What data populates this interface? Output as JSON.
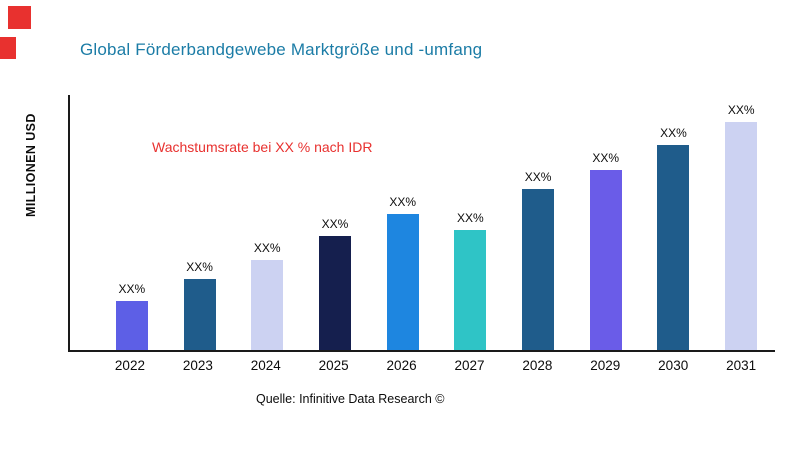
{
  "page": {
    "source": "Quelle: Infinitive Data Research ©"
  },
  "colors": {
    "title": "#1b7ca6",
    "annotation": "#e8312f",
    "logo": "#e8312f",
    "axis": "#1a1a1a",
    "background": "#ffffff"
  },
  "chart_data": {
    "type": "bar",
    "title": "Global Förderbandgewebe Marktgröße und -umfang",
    "ylabel": "MILLIONEN USD",
    "xlabel": "",
    "annotation": "Wachstumsrate bei XX % nach IDR",
    "categories": [
      "2022",
      "2023",
      "2024",
      "2025",
      "2026",
      "2027",
      "2028",
      "2029",
      "2030",
      "2031"
    ],
    "value_labels": [
      "XX%",
      "XX%",
      "XX%",
      "XX%",
      "XX%",
      "XX%",
      "XX%",
      "XX%",
      "XX%",
      "XX%"
    ],
    "values": [
      50,
      72,
      92,
      116,
      139,
      122,
      164,
      184,
      209,
      232
    ],
    "ylim": [
      0,
      260
    ],
    "bar_colors": [
      "#5d5fe6",
      "#1f5c8b",
      "#ccd2f2",
      "#151f4e",
      "#1e86e0",
      "#2fc4c6",
      "#1f5c8b",
      "#6a5ce8",
      "#1f5c8b",
      "#ccd2f2"
    ],
    "grid": false,
    "legend": false
  }
}
